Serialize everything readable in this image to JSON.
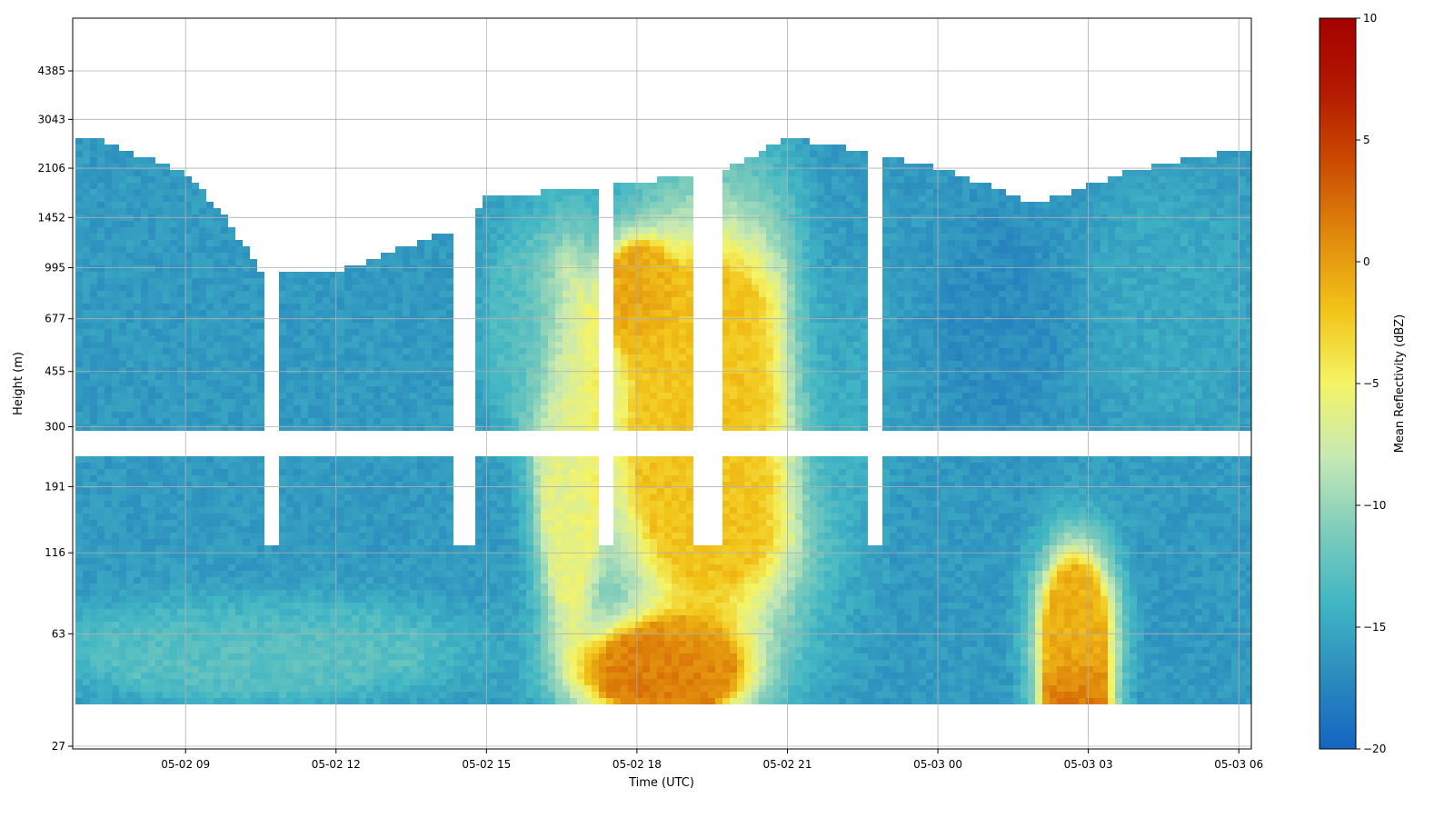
{
  "chart_data": {
    "type": "heatmap",
    "xlabel": "Time (UTC)",
    "ylabel": "Height (m)",
    "x_ticks": [
      "05-02 09",
      "05-02 12",
      "05-02 15",
      "05-02 18",
      "05-02 21",
      "05-03 00",
      "05-03 03",
      "05-03 06"
    ],
    "y_ticks": [
      "27",
      "63",
      "116",
      "191",
      "300",
      "455",
      "677",
      "995",
      "1452",
      "2106",
      "3043",
      "4385"
    ],
    "x_range": [
      "05-02 06:45",
      "05-03 06:15"
    ],
    "y_range_m": [
      27,
      6200
    ],
    "grid": true,
    "colorbar": {
      "label": "Mean Reflectivity (dBZ)",
      "min": -20,
      "max": 10,
      "ticks": [
        "10",
        "5",
        "0",
        "−5",
        "−10",
        "−15",
        "−20"
      ],
      "stops": [
        "#1565c0",
        "#2b8cbe",
        "#41b6c4",
        "#7fcdbb",
        "#c7e9b4",
        "#f4f466",
        "#f2c418",
        "#e08a0c",
        "#cc4c02",
        "#b31a00",
        "#a50000"
      ]
    },
    "data_gaps": [
      {
        "kind": "time",
        "from": "05-02 10:35",
        "to": "05-02 10:55"
      },
      {
        "kind": "time",
        "from": "05-02 14:20",
        "to": "05-02 14:45"
      },
      {
        "kind": "time",
        "from": "05-02 17:15",
        "to": "05-02 17:30"
      },
      {
        "kind": "time",
        "from": "05-02 19:10",
        "to": "05-02 19:40"
      },
      {
        "kind": "time",
        "from": "05-02 22:35",
        "to": "05-02 22:55"
      },
      {
        "kind": "height_m",
        "from": 245,
        "to": 285
      }
    ],
    "signal_tops_m": [
      {
        "time": "05-02 07:00",
        "top_m": 2700
      },
      {
        "time": "05-02 09:00",
        "top_m": 2000
      },
      {
        "time": "05-02 10:30",
        "top_m": 950
      },
      {
        "time": "05-02 12:00",
        "top_m": 950
      },
      {
        "time": "05-02 14:30",
        "top_m": 1350
      },
      {
        "time": "05-02 15:00",
        "top_m": 1700
      },
      {
        "time": "05-02 17:00",
        "top_m": 1800
      },
      {
        "time": "05-02 18:30",
        "top_m": 1950
      },
      {
        "time": "05-02 20:00",
        "top_m": 2150
      },
      {
        "time": "05-02 21:00",
        "top_m": 2650
      },
      {
        "time": "05-02 22:30",
        "top_m": 2400
      },
      {
        "time": "05-03 00:00",
        "top_m": 2100
      },
      {
        "time": "05-03 02:00",
        "top_m": 1600
      },
      {
        "time": "05-03 04:00",
        "top_m": 2100
      },
      {
        "time": "05-03 06:00",
        "top_m": 2400
      }
    ],
    "reflectivity_features": [
      {
        "region": "05-02 06:45–14:00, 63–2000 m",
        "dbz": -16
      },
      {
        "region": "05-02 07:00–14:00, 50–63 m",
        "dbz": -12
      },
      {
        "region": "05-02 15:00–16:30, 300–1300 m",
        "dbz": -13
      },
      {
        "region": "05-02 16:00–17:15, 63–995 m",
        "dbz": -6
      },
      {
        "region": "05-02 17:30–21:30, 63–1400 m",
        "dbz": -2
      },
      {
        "region": "05-02 18:00, 820 m",
        "dbz": 0
      },
      {
        "region": "05-02 17:00–20:00, 35–63 m",
        "dbz": 2
      },
      {
        "region": "05-02 21:00–22:30, 100–2600 m",
        "dbz": -17
      },
      {
        "region": "05-03 00:00–02:30, 300–1500 m",
        "dbz": -17
      },
      {
        "region": "05-03 02:00–03:30, 35–120 m",
        "dbz": -1
      },
      {
        "region": "05-03 02:45, 35 m",
        "dbz": 3
      },
      {
        "region": "05-03 03:00–06:15, 300–2000 m",
        "dbz": -15
      }
    ]
  }
}
